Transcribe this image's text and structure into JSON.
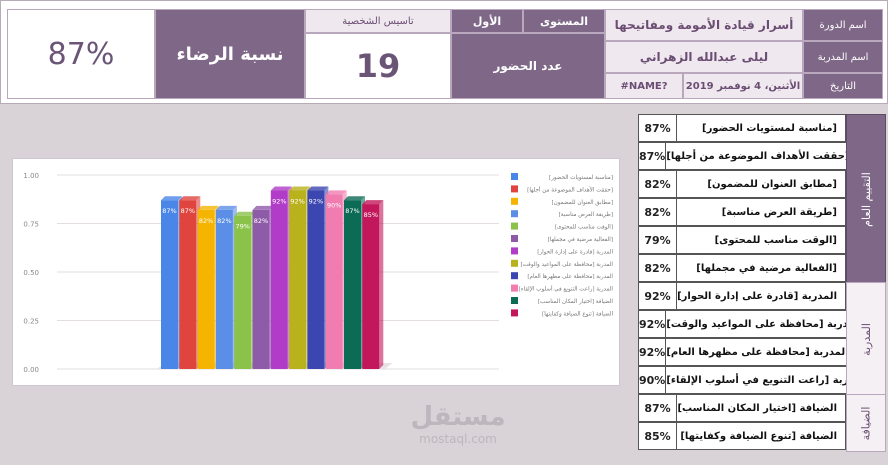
{
  "header": {
    "course_label": "اسم الدورة",
    "course_name": "أسرار قيادة الأمومة ومفاتيحها",
    "level_label": "المستوى",
    "level_value": "الأول",
    "personality_label": "تاسيس الشخصية",
    "trainer_label": "اسم المدربة",
    "trainer_name": "ليلى عبدالله الزهراني",
    "date_label": "التاريخ",
    "date_value": "الأثنين، 4 نوفمبر 2019",
    "name_error": "#NAME?",
    "attendance_label": "عدد الحضور",
    "attendance_count": "19",
    "satisfaction_label": "نسبة الرضاء",
    "satisfaction_value": "87%"
  },
  "ratings": {
    "groups": [
      {
        "label": "التقييم العام"
      },
      {
        "label": "المدربة"
      },
      {
        "label": "الضيافة"
      }
    ],
    "rows": [
      {
        "label": "[مناسبة لمستويات الحضور]",
        "value": "87%"
      },
      {
        "label": "[حققت الأهداف الموضوعة من أجلها]",
        "value": "87%"
      },
      {
        "label": "[مطابق العنوان للمضمون]",
        "value": "82%"
      },
      {
        "label": "[طريقة العرض مناسبة]",
        "value": "82%"
      },
      {
        "label": "[الوقت مناسب للمحتوى]",
        "value": "79%"
      },
      {
        "label": "[الفعالية مرضية في مجملها]",
        "value": "82%"
      },
      {
        "label": "[المدربة [قادرة على إدارة الحوار",
        "value": "92%"
      },
      {
        "label": "[المدربة [محافظة على المواعيد والوقت",
        "value": "92%"
      },
      {
        "label": "[المدربة [محافظة على مظهرها العام",
        "value": "92%"
      },
      {
        "label": "[المدربة [راعت التنويع في أسلوب الإلقاء",
        "value": "90%"
      },
      {
        "label": "[الضيافة [اختيار المكان المناسب",
        "value": "87%"
      },
      {
        "label": "[الضيافة [تنوع الضيافة وكفايتها",
        "value": "85%"
      }
    ]
  },
  "chart_data": {
    "type": "bar",
    "ylim": [
      0,
      1
    ],
    "yticks": [
      "0.00",
      "0.25",
      "0.50",
      "0.75",
      "1.00"
    ],
    "series": [
      {
        "name": "[مناسبة لمستويات الحضور]",
        "value": 0.87,
        "label": "87%",
        "color": "#4a86e8"
      },
      {
        "name": "[حققت الأهداف الموضوعة من أجلها]",
        "value": 0.87,
        "label": "87%",
        "color": "#e0443e"
      },
      {
        "name": "[مطابق العنوان للمضمون]",
        "value": 0.82,
        "label": "82%",
        "color": "#f4b400"
      },
      {
        "name": "[طريقة العرض مناسبة]",
        "value": 0.82,
        "label": "82%",
        "color": "#5b8ee6"
      },
      {
        "name": "[الوقت مناسب للمحتوى]",
        "value": 0.79,
        "label": "79%",
        "color": "#8bc34a"
      },
      {
        "name": "[الفعالية مرضية في مجملها]",
        "value": 0.82,
        "label": "82%",
        "color": "#8e5ba8"
      },
      {
        "name": "المدربة [قادرة على إدارة الحوار]",
        "value": 0.92,
        "label": "92%",
        "color": "#b03cc7"
      },
      {
        "name": "المدربة [محافظة على المواعيد والوقت]",
        "value": 0.92,
        "label": "92%",
        "color": "#b9b21c"
      },
      {
        "name": "المدربة [محافظة على مظهرها العام]",
        "value": 0.92,
        "label": "92%",
        "color": "#3b46b0"
      },
      {
        "name": "المدربة [راعت التنويع في أسلوب الإلقاء]",
        "value": 0.9,
        "label": "90%",
        "color": "#f07cb0"
      },
      {
        "name": "الضيافة [اختيار المكان المناسب]",
        "value": 0.87,
        "label": "87%",
        "color": "#0b6b55"
      },
      {
        "name": "الضيافة [تنوع الضيافة وكفايتها]",
        "value": 0.85,
        "label": "85%",
        "color": "#c2185b"
      }
    ]
  },
  "watermark": {
    "logo": "مستقل",
    "site": "mostaql.com"
  }
}
